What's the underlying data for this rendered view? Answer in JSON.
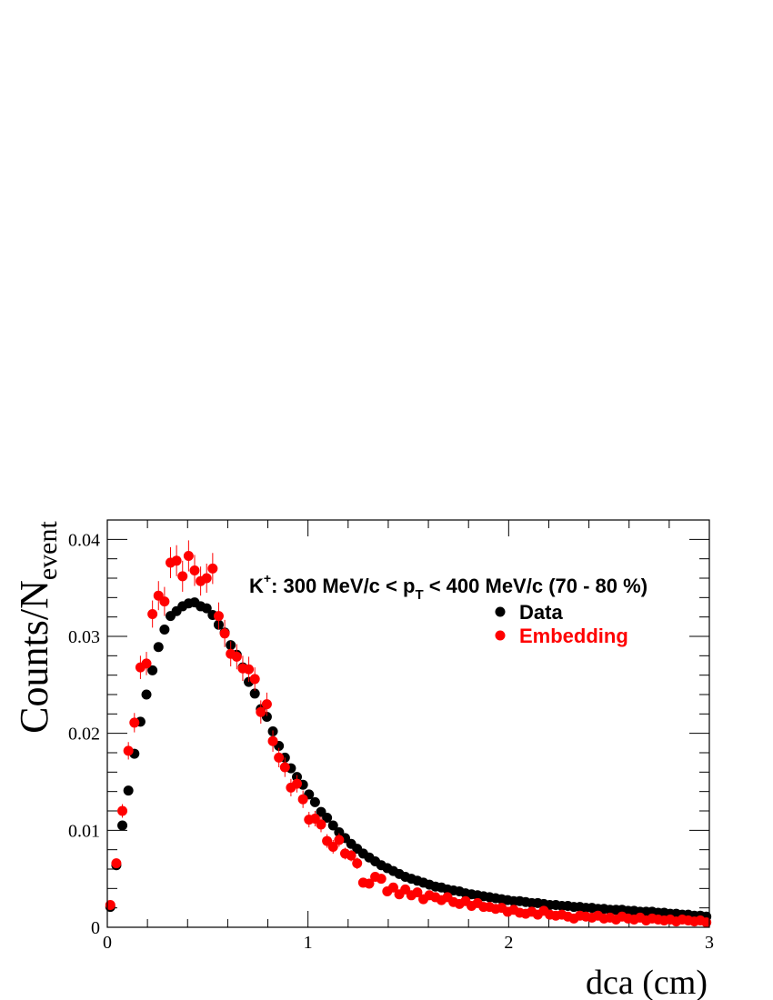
{
  "chart_data": {
    "type": "scatter",
    "title": "",
    "annotation": {
      "prefix": "K",
      "charge": "+",
      "middle": ": 300 MeV/c < p",
      "subscript": "T",
      "suffix": " < 400 MeV/c (70 - 80 %)"
    },
    "xlabel": "dca (cm)",
    "ylabel": {
      "main": "Counts/N",
      "subscript": "event"
    },
    "xlim": [
      0,
      3
    ],
    "ylim": [
      0,
      0.042
    ],
    "x_ticks": [
      {
        "value": 0,
        "label": "0"
      },
      {
        "value": 1,
        "label": "1"
      },
      {
        "value": 2,
        "label": "2"
      },
      {
        "value": 3,
        "label": "3"
      }
    ],
    "y_ticks": [
      {
        "value": 0,
        "label": "0"
      },
      {
        "value": 0.01,
        "label": "0.01"
      },
      {
        "value": 0.02,
        "label": "0.02"
      },
      {
        "value": 0.03,
        "label": "0.03"
      },
      {
        "value": 0.04,
        "label": "0.04"
      }
    ],
    "legend": {
      "position": "top-right"
    },
    "series": [
      {
        "name": "Data",
        "color": "#000000",
        "x": [
          0.015,
          0.045,
          0.075,
          0.105,
          0.135,
          0.165,
          0.195,
          0.225,
          0.255,
          0.285,
          0.315,
          0.345,
          0.375,
          0.405,
          0.435,
          0.465,
          0.495,
          0.525,
          0.555,
          0.585,
          0.615,
          0.645,
          0.675,
          0.705,
          0.735,
          0.765,
          0.795,
          0.825,
          0.855,
          0.885,
          0.915,
          0.945,
          0.975,
          1.005,
          1.035,
          1.065,
          1.095,
          1.125,
          1.155,
          1.185,
          1.215,
          1.245,
          1.275,
          1.305,
          1.335,
          1.365,
          1.395,
          1.425,
          1.455,
          1.485,
          1.515,
          1.545,
          1.575,
          1.605,
          1.635,
          1.665,
          1.695,
          1.725,
          1.755,
          1.785,
          1.815,
          1.845,
          1.875,
          1.905,
          1.935,
          1.965,
          1.995,
          2.025,
          2.055,
          2.085,
          2.115,
          2.145,
          2.175,
          2.205,
          2.235,
          2.265,
          2.295,
          2.325,
          2.355,
          2.385,
          2.415,
          2.445,
          2.475,
          2.505,
          2.535,
          2.565,
          2.595,
          2.625,
          2.655,
          2.685,
          2.715,
          2.745,
          2.775,
          2.805,
          2.835,
          2.865,
          2.895,
          2.925,
          2.955,
          2.985
        ],
        "y": [
          0.0021,
          0.0064,
          0.0105,
          0.0141,
          0.0179,
          0.0212,
          0.024,
          0.0265,
          0.0289,
          0.0307,
          0.0321,
          0.0326,
          0.0331,
          0.0334,
          0.0335,
          0.0331,
          0.0329,
          0.0322,
          0.0312,
          0.0304,
          0.0291,
          0.0281,
          0.0268,
          0.0253,
          0.0241,
          0.0225,
          0.0217,
          0.0202,
          0.0187,
          0.0175,
          0.0164,
          0.0155,
          0.0147,
          0.0137,
          0.0129,
          0.0119,
          0.0113,
          0.0105,
          0.0098,
          0.0092,
          0.0086,
          0.0081,
          0.0076,
          0.0072,
          0.0068,
          0.0064,
          0.0061,
          0.0058,
          0.0055,
          0.0052,
          0.005,
          0.0048,
          0.0046,
          0.0044,
          0.0042,
          0.0041,
          0.0039,
          0.0038,
          0.0037,
          0.0035,
          0.0034,
          0.0033,
          0.0032,
          0.0031,
          0.003,
          0.0029,
          0.0028,
          0.0027,
          0.0027,
          0.0026,
          0.0025,
          0.0025,
          0.0024,
          0.0023,
          0.0023,
          0.0022,
          0.0022,
          0.0021,
          0.0021,
          0.002,
          0.002,
          0.0019,
          0.0019,
          0.0018,
          0.0018,
          0.0018,
          0.0017,
          0.0017,
          0.0016,
          0.0016,
          0.0016,
          0.0015,
          0.0015,
          0.0014,
          0.0014,
          0.0013,
          0.0013,
          0.0012,
          0.0012,
          0.0011
        ]
      },
      {
        "name": "Embedding",
        "color": "#ff0000",
        "x": [
          0.015,
          0.045,
          0.075,
          0.105,
          0.135,
          0.165,
          0.195,
          0.225,
          0.255,
          0.285,
          0.315,
          0.345,
          0.375,
          0.405,
          0.435,
          0.465,
          0.495,
          0.525,
          0.555,
          0.585,
          0.615,
          0.645,
          0.675,
          0.705,
          0.735,
          0.765,
          0.795,
          0.825,
          0.855,
          0.885,
          0.915,
          0.945,
          0.975,
          1.005,
          1.035,
          1.065,
          1.095,
          1.125,
          1.155,
          1.185,
          1.215,
          1.245,
          1.275,
          1.305,
          1.335,
          1.365,
          1.395,
          1.425,
          1.455,
          1.485,
          1.515,
          1.545,
          1.575,
          1.605,
          1.635,
          1.665,
          1.695,
          1.725,
          1.755,
          1.785,
          1.815,
          1.845,
          1.875,
          1.905,
          1.935,
          1.965,
          1.995,
          2.025,
          2.055,
          2.085,
          2.115,
          2.145,
          2.175,
          2.205,
          2.235,
          2.265,
          2.295,
          2.325,
          2.355,
          2.385,
          2.415,
          2.445,
          2.475,
          2.505,
          2.535,
          2.565,
          2.595,
          2.625,
          2.655,
          2.685,
          2.715,
          2.745,
          2.775,
          2.805,
          2.835,
          2.865,
          2.895,
          2.925,
          2.955,
          2.985
        ],
        "y": [
          0.0023,
          0.0066,
          0.012,
          0.0182,
          0.0211,
          0.0268,
          0.0272,
          0.0323,
          0.0342,
          0.0336,
          0.0376,
          0.0378,
          0.0362,
          0.0383,
          0.0368,
          0.0357,
          0.036,
          0.037,
          0.0321,
          0.0303,
          0.0282,
          0.0279,
          0.0267,
          0.0266,
          0.0256,
          0.0222,
          0.023,
          0.0192,
          0.0175,
          0.0165,
          0.0144,
          0.0148,
          0.0132,
          0.0111,
          0.0112,
          0.0106,
          0.0089,
          0.0083,
          0.009,
          0.0076,
          0.0074,
          0.0066,
          0.0046,
          0.0045,
          0.0052,
          0.005,
          0.0037,
          0.0041,
          0.0034,
          0.0039,
          0.0033,
          0.0036,
          0.0029,
          0.0033,
          0.0031,
          0.0028,
          0.0031,
          0.0026,
          0.0024,
          0.0027,
          0.0022,
          0.0025,
          0.0021,
          0.0021,
          0.0019,
          0.002,
          0.0016,
          0.0018,
          0.0015,
          0.0014,
          0.0016,
          0.0013,
          0.0017,
          0.0013,
          0.0012,
          0.0013,
          0.0011,
          0.0009,
          0.0012,
          0.0011,
          0.001,
          0.0012,
          0.0009,
          0.001,
          0.0008,
          0.0011,
          0.0009,
          0.0008,
          0.001,
          0.0007,
          0.0009,
          0.0008,
          0.0007,
          0.0008,
          0.0006,
          0.0008,
          0.0007,
          0.0006,
          0.0007,
          0.0005
        ],
        "err": [
          0.0003,
          0.0005,
          0.0007,
          0.0009,
          0.001,
          0.0012,
          0.0012,
          0.0014,
          0.0015,
          0.0015,
          0.0016,
          0.0016,
          0.0016,
          0.0016,
          0.0016,
          0.0015,
          0.0015,
          0.0016,
          0.0014,
          0.0014,
          0.0013,
          0.0013,
          0.0013,
          0.0013,
          0.0012,
          0.0012,
          0.0012,
          0.0011,
          0.001,
          0.001,
          0.0009,
          0.0009,
          0.0009,
          0.0008,
          0.0008,
          0.0008,
          0.0007,
          0.0007,
          0.0007,
          0.0006,
          0.0006,
          0.0006,
          0.0005,
          0.0005,
          0.0005,
          0.0005,
          0.0004,
          0.0004,
          0.0004,
          0.0004,
          0.0004,
          0.0004,
          0.0003,
          0.0003,
          0.0003,
          0.0003,
          0.0003,
          0.0003,
          0.0003,
          0.0003,
          0.0003,
          0.0003,
          0.0003,
          0.0003,
          0.0003,
          0.0003,
          0.0002,
          0.0002,
          0.0002,
          0.0002,
          0.0002,
          0.0002,
          0.0002,
          0.0002,
          0.0002,
          0.0002,
          0.0002,
          0.0002,
          0.0002,
          0.0002,
          0.0002,
          0.0002,
          0.0002,
          0.0002,
          0.0002,
          0.0002,
          0.0002,
          0.0002,
          0.0002,
          0.0002,
          0.0002,
          0.0002,
          0.0002,
          0.0002,
          0.0002,
          0.0002,
          0.0002,
          0.0002,
          0.0002,
          0.0002
        ]
      }
    ]
  }
}
